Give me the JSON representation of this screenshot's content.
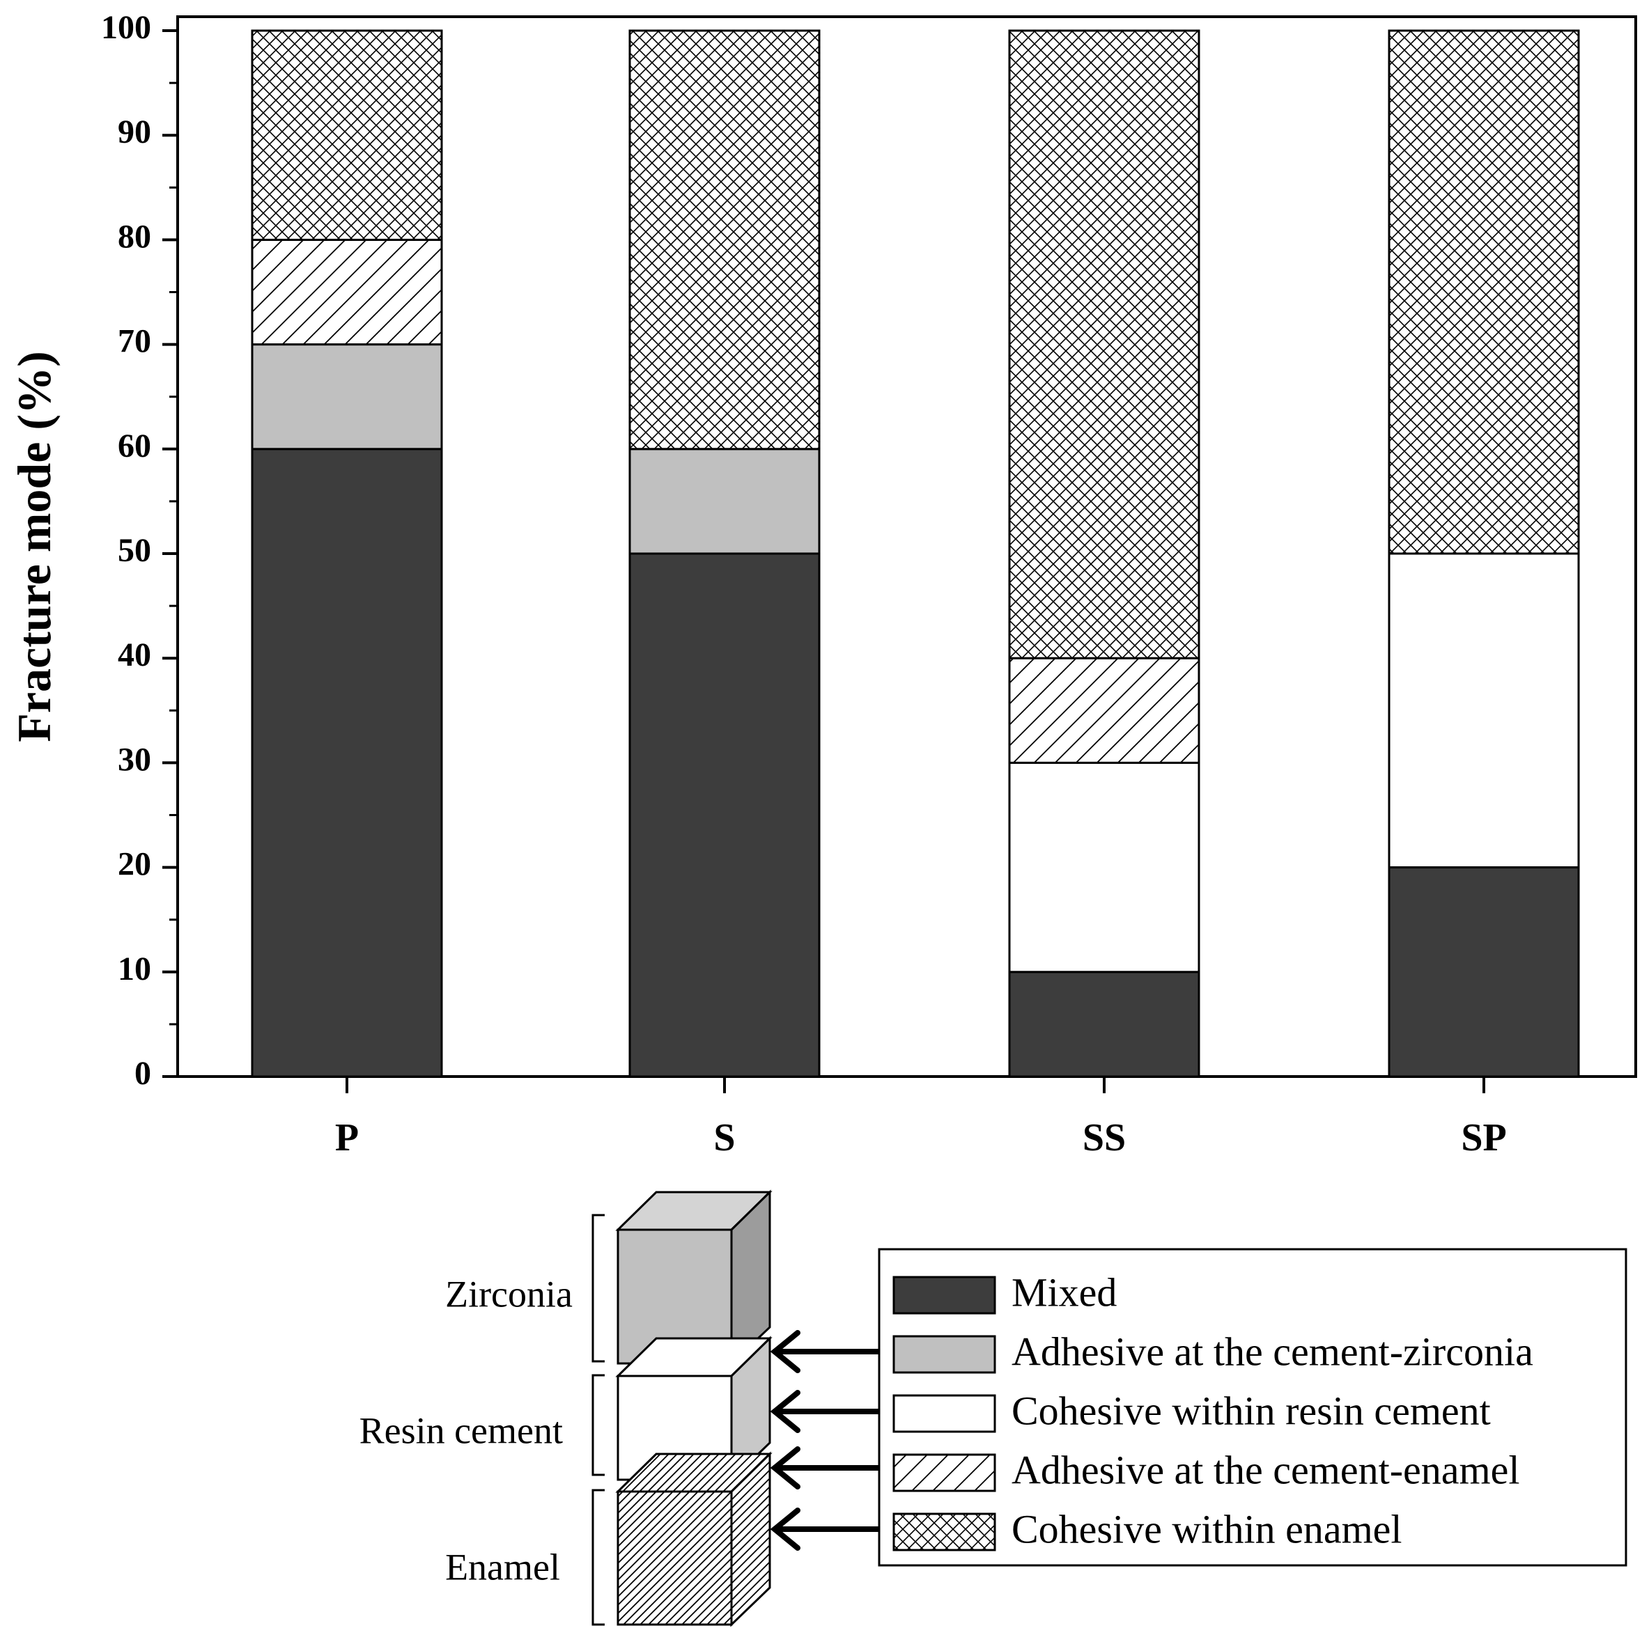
{
  "chart_data": {
    "type": "bar",
    "stacked": true,
    "title": "",
    "xlabel": "",
    "ylabel": "Fracture mode (%)",
    "ylim": [
      0,
      100
    ],
    "yticks": [
      "0",
      "10",
      "20",
      "30",
      "40",
      "50",
      "60",
      "70",
      "80",
      "90",
      "100"
    ],
    "categories": [
      "P",
      "S",
      "SS",
      "SP"
    ],
    "grid": false,
    "legend_position": "bottom-right, below plot",
    "series": [
      {
        "name": "Mixed",
        "fill": "#3d3d3d",
        "pattern": "solid-dark",
        "values": [
          60,
          50,
          10,
          20
        ]
      },
      {
        "name": "Adhesive at the cement-zirconia",
        "fill": "#c0c0c0",
        "pattern": "solid-gray",
        "values": [
          10,
          10,
          0,
          0
        ]
      },
      {
        "name": "Cohesive within resin cement",
        "fill": "#ffffff",
        "pattern": "solid-white",
        "values": [
          0,
          0,
          20,
          30
        ]
      },
      {
        "name": "Adhesive at the cement-enamel",
        "fill": "#ffffff",
        "pattern": "diagonal-hatch",
        "values": [
          10,
          0,
          10,
          0
        ]
      },
      {
        "name": "Cohesive within enamel",
        "fill": "#ffffff",
        "pattern": "crosshatch",
        "values": [
          20,
          40,
          60,
          50
        ]
      }
    ]
  },
  "specimen_diagram": {
    "layers": [
      {
        "label": "Zirconia",
        "fill": "#c0c0c0",
        "pattern": "solid-gray"
      },
      {
        "label": "Resin cement",
        "fill": "#ffffff",
        "pattern": "solid-white"
      },
      {
        "label": "Enamel",
        "fill": "#ffffff",
        "pattern": "dense-diagonal-hatch"
      }
    ]
  }
}
